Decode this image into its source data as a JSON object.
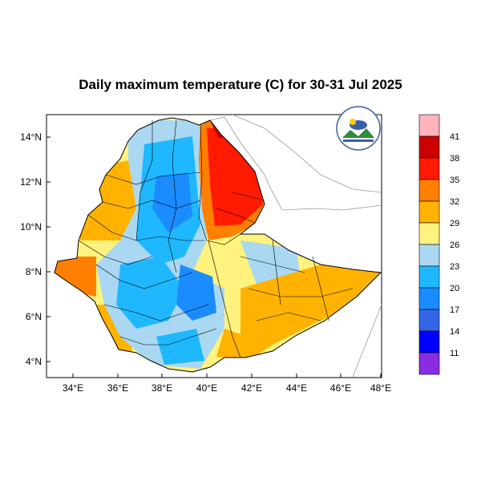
{
  "title": "Daily maximum temperature (C) for 30-31 Jul 2025",
  "map": {
    "lat_ticks": [
      "14°N",
      "12°N",
      "10°N",
      "8°N",
      "6°N",
      "4°N"
    ],
    "lon_ticks": [
      "34°E",
      "36°E",
      "38°E",
      "40°E",
      "42°E",
      "44°E",
      "46°E",
      "48°E"
    ],
    "lon_range": [
      33.0,
      48.0
    ],
    "lat_range": [
      3.2,
      15.0
    ]
  },
  "colorbar": {
    "labels": [
      "41",
      "38",
      "35",
      "32",
      "29",
      "26",
      "23",
      "20",
      "17",
      "14",
      "11"
    ],
    "colors": [
      "#ffb3bc",
      "#cc0000",
      "#ff1a00",
      "#ff7f00",
      "#ffb300",
      "#fff27f",
      "#aad8f2",
      "#1fb8ff",
      "#1a8cff",
      "#3366e6",
      "#0000ff",
      "#8b2be2"
    ]
  },
  "logo": {
    "icon": "meteorology-agency-logo"
  }
}
